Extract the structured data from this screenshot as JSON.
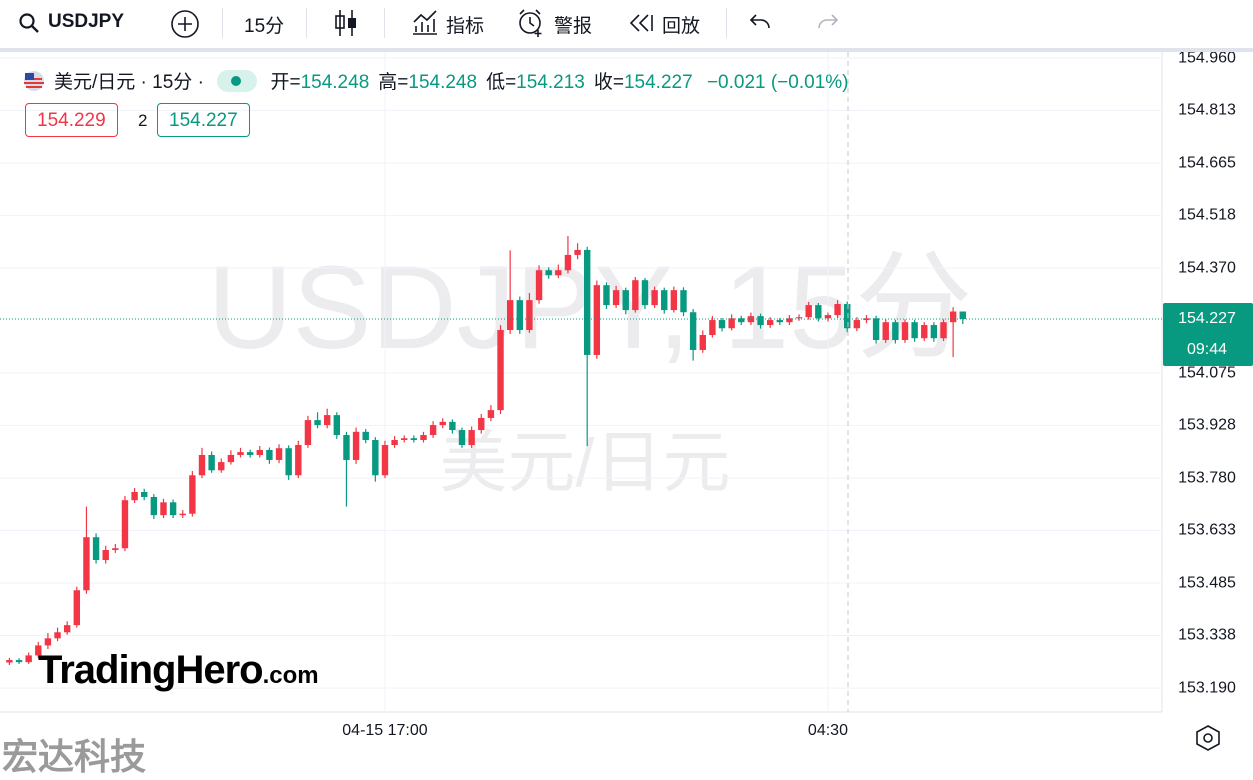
{
  "toolbar": {
    "symbol": "USDJPY",
    "interval": "15分",
    "indicators": "指标",
    "alerts": "警报",
    "replay": "回放"
  },
  "chart_data": {
    "type": "candlestick",
    "title": "美元/日元 · 15分 ·",
    "ohlc_labels": [
      "开=",
      "高=",
      "低=",
      "收="
    ],
    "change_label": "−0.021 (−0.01%)",
    "bid": 154.229,
    "spread": 2,
    "ask": 154.227,
    "countdown": "09:44",
    "watermark": "USDJPY, 15分",
    "watermark_subtitle": "美元/日元",
    "up_color": "#f23645",
    "down_color": "#089981",
    "grid": true,
    "ylim": [
      153.123,
      154.977
    ],
    "yticks": [
      {
        "value": 154.96,
        "label": "154.960"
      },
      154.813,
      154.665,
      154.518,
      {
        "value": 154.37,
        "label": "154.370"
      },
      154.075,
      153.928,
      {
        "value": 153.78,
        "label": "153.780"
      },
      153.633,
      153.485,
      153.338,
      {
        "value": 153.19,
        "label": "153.190"
      }
    ],
    "categories": [
      null,
      null,
      null,
      null,
      null,
      null,
      null,
      null,
      null,
      null,
      null,
      null,
      null,
      null,
      null,
      null,
      null,
      null,
      null,
      null,
      null,
      null,
      null,
      null,
      null,
      null,
      null,
      null,
      null,
      null,
      null,
      null,
      null,
      null,
      null,
      null,
      null,
      null,
      null,
      "04-15 17:00",
      null,
      null,
      null,
      null,
      null,
      null,
      null,
      null,
      null,
      null,
      null,
      null,
      null,
      null,
      null,
      null,
      null,
      null,
      null,
      null,
      null,
      null,
      null,
      null,
      null,
      null,
      null,
      null,
      null,
      null,
      null,
      null,
      null,
      null,
      null,
      null,
      null,
      null,
      null,
      null,
      null,
      null,
      null,
      null,
      null,
      "04:30",
      null,
      null,
      null,
      null,
      null,
      null,
      null,
      null,
      null,
      null,
      null,
      null,
      null,
      null
    ],
    "ohlc": [
      [
        153.262,
        153.275,
        153.255,
        153.269
      ],
      [
        153.269,
        153.274,
        153.258,
        153.263
      ],
      [
        153.263,
        153.29,
        153.258,
        153.282
      ],
      [
        153.282,
        153.32,
        153.275,
        153.31
      ],
      [
        153.31,
        153.345,
        153.3,
        153.33
      ],
      [
        153.33,
        153.36,
        153.322,
        153.347
      ],
      [
        153.347,
        153.378,
        153.34,
        153.367
      ],
      [
        153.367,
        153.475,
        153.36,
        153.465
      ],
      [
        153.465,
        153.7,
        153.455,
        153.614
      ],
      [
        153.614,
        153.625,
        153.54,
        153.55
      ],
      [
        153.55,
        153.59,
        153.54,
        153.578
      ],
      [
        153.578,
        153.595,
        153.57,
        153.583
      ],
      [
        153.583,
        153.73,
        153.575,
        153.718
      ],
      [
        153.718,
        153.752,
        153.71,
        153.741
      ],
      [
        153.741,
        153.75,
        153.718,
        153.727
      ],
      [
        153.727,
        153.735,
        153.665,
        153.676
      ],
      [
        153.676,
        153.722,
        153.668,
        153.712
      ],
      [
        153.712,
        153.72,
        153.668,
        153.676
      ],
      [
        153.676,
        153.69,
        153.668,
        153.68
      ],
      [
        153.68,
        153.8,
        153.672,
        153.788
      ],
      [
        153.788,
        153.865,
        153.78,
        153.845
      ],
      [
        153.845,
        153.855,
        153.795,
        153.802
      ],
      [
        153.802,
        153.835,
        153.795,
        153.825
      ],
      [
        153.825,
        153.858,
        153.818,
        153.845
      ],
      [
        153.845,
        153.865,
        153.838,
        153.853
      ],
      [
        153.853,
        153.86,
        153.838,
        153.845
      ],
      [
        153.845,
        153.87,
        153.838,
        153.859
      ],
      [
        153.859,
        153.866,
        153.82,
        153.831
      ],
      [
        153.831,
        153.875,
        153.822,
        153.864
      ],
      [
        153.864,
        153.872,
        153.775,
        153.788
      ],
      [
        153.788,
        153.885,
        153.78,
        153.873
      ],
      [
        153.873,
        153.955,
        153.865,
        153.943
      ],
      [
        153.943,
        153.965,
        153.92,
        153.929
      ],
      [
        153.929,
        153.975,
        153.92,
        153.957
      ],
      [
        153.957,
        153.965,
        153.89,
        153.901
      ],
      [
        153.901,
        153.91,
        153.7,
        153.831
      ],
      [
        153.831,
        153.922,
        153.82,
        153.91
      ],
      [
        153.91,
        153.918,
        153.878,
        153.887
      ],
      [
        153.887,
        153.895,
        153.77,
        153.788
      ],
      [
        153.788,
        153.885,
        153.78,
        153.873
      ],
      [
        153.873,
        153.898,
        153.865,
        153.887
      ],
      [
        153.887,
        153.9,
        153.88,
        153.892
      ],
      [
        153.892,
        153.9,
        153.88,
        153.887
      ],
      [
        153.887,
        153.91,
        153.88,
        153.901
      ],
      [
        153.901,
        153.94,
        153.893,
        153.929
      ],
      [
        153.929,
        153.948,
        153.92,
        153.938
      ],
      [
        153.938,
        153.945,
        153.905,
        153.915
      ],
      [
        153.915,
        153.922,
        153.865,
        153.873
      ],
      [
        153.873,
        153.925,
        153.865,
        153.915
      ],
      [
        153.915,
        153.96,
        153.905,
        153.949
      ],
      [
        153.949,
        153.985,
        153.94,
        153.971
      ],
      [
        153.971,
        154.21,
        153.96,
        154.196
      ],
      [
        154.196,
        154.42,
        154.185,
        154.28
      ],
      [
        154.28,
        154.29,
        154.185,
        154.196
      ],
      [
        154.196,
        154.3,
        154.188,
        154.28
      ],
      [
        154.28,
        154.378,
        154.27,
        154.364
      ],
      [
        154.364,
        154.372,
        154.34,
        154.35
      ],
      [
        154.35,
        154.38,
        154.342,
        154.364
      ],
      [
        154.364,
        154.46,
        154.355,
        154.407
      ],
      [
        154.407,
        154.44,
        154.395,
        154.421
      ],
      [
        154.421,
        154.43,
        153.87,
        154.126
      ],
      [
        154.126,
        154.335,
        154.115,
        154.322
      ],
      [
        154.322,
        154.33,
        154.255,
        154.266
      ],
      [
        154.266,
        154.32,
        154.258,
        154.308
      ],
      [
        154.308,
        154.315,
        154.24,
        154.252
      ],
      [
        154.252,
        154.345,
        154.245,
        154.336
      ],
      [
        154.336,
        154.342,
        154.255,
        154.266
      ],
      [
        154.266,
        154.318,
        154.258,
        154.308
      ],
      [
        154.308,
        154.315,
        154.242,
        154.252
      ],
      [
        154.252,
        154.318,
        154.245,
        154.308
      ],
      [
        154.308,
        154.316,
        154.235,
        154.246
      ],
      [
        154.246,
        154.255,
        154.11,
        154.14
      ],
      [
        154.14,
        154.195,
        154.132,
        154.182
      ],
      [
        154.182,
        154.235,
        154.175,
        154.224
      ],
      [
        154.224,
        154.23,
        154.192,
        154.201
      ],
      [
        154.201,
        154.24,
        154.195,
        154.229
      ],
      [
        154.229,
        154.236,
        154.21,
        154.218
      ],
      [
        154.218,
        154.245,
        154.21,
        154.235
      ],
      [
        154.235,
        154.242,
        154.2,
        154.21
      ],
      [
        154.21,
        154.232,
        154.202,
        154.224
      ],
      [
        154.224,
        154.23,
        154.21,
        154.218
      ],
      [
        154.218,
        154.238,
        154.21,
        154.229
      ],
      [
        154.229,
        154.24,
        154.222,
        154.232
      ],
      [
        154.232,
        154.275,
        154.225,
        154.266
      ],
      [
        154.266,
        154.272,
        154.22,
        154.229
      ],
      [
        154.229,
        154.245,
        154.22,
        154.238
      ],
      [
        154.238,
        154.28,
        154.23,
        154.269
      ],
      [
        154.269,
        154.276,
        154.19,
        154.201
      ],
      [
        154.201,
        154.232,
        154.193,
        154.224
      ],
      [
        154.224,
        154.238,
        154.215,
        154.229
      ],
      [
        154.229,
        154.236,
        154.158,
        154.168
      ],
      [
        154.168,
        154.226,
        154.16,
        154.218
      ],
      [
        154.218,
        154.225,
        154.158,
        154.168
      ],
      [
        154.168,
        154.226,
        154.16,
        154.218
      ],
      [
        154.218,
        154.225,
        154.163,
        154.173
      ],
      [
        154.173,
        154.218,
        154.165,
        154.21
      ],
      [
        154.21,
        154.218,
        154.163,
        154.173
      ],
      [
        154.173,
        154.226,
        154.165,
        154.218
      ],
      [
        154.218,
        154.26,
        154.12,
        154.248
      ],
      [
        154.248,
        154.248,
        154.213,
        154.227
      ]
    ]
  },
  "branding": {
    "logo": "TradingHero",
    "logo_suffix": ".com",
    "corner": "宏达科技"
  }
}
